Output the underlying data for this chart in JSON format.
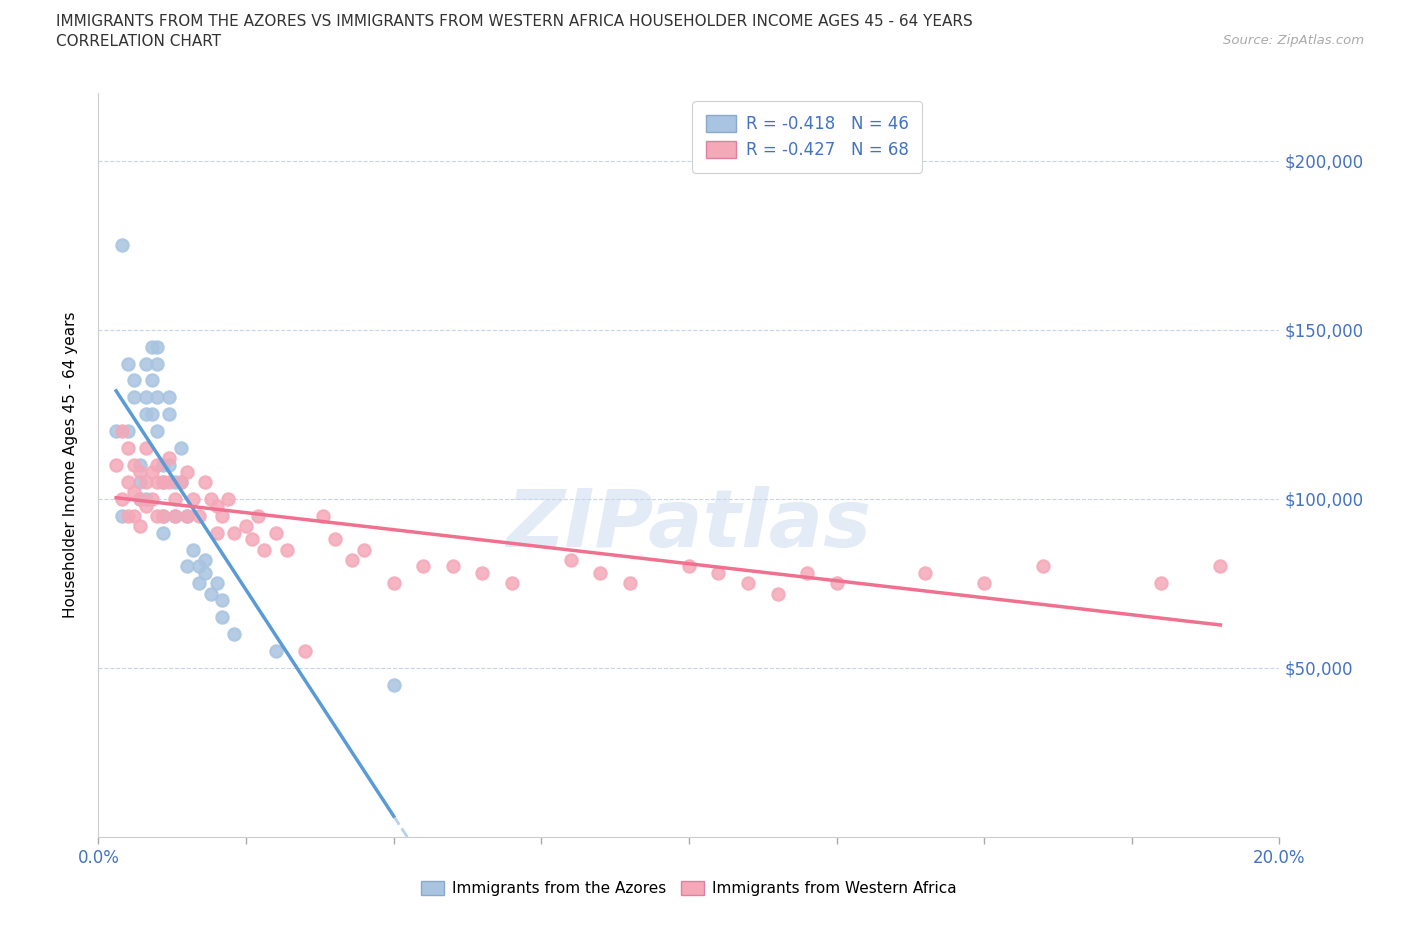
{
  "title_line1": "IMMIGRANTS FROM THE AZORES VS IMMIGRANTS FROM WESTERN AFRICA HOUSEHOLDER INCOME AGES 45 - 64 YEARS",
  "title_line2": "CORRELATION CHART",
  "source_text": "Source: ZipAtlas.com",
  "ylabel_label": "Householder Income Ages 45 - 64 years",
  "xlim": [
    0.0,
    0.2
  ],
  "ylim": [
    0,
    220000
  ],
  "x_ticks": [
    0.0,
    0.025,
    0.05,
    0.075,
    0.1,
    0.125,
    0.15,
    0.175,
    0.2
  ],
  "y_ticks": [
    0,
    50000,
    100000,
    150000,
    200000
  ],
  "azores_color": "#a8c4e0",
  "western_africa_color": "#f4a8b8",
  "azores_line_color": "#5b9bd5",
  "western_africa_line_color": "#f07090",
  "legend_r_azores": "-0.418",
  "legend_n_azores": "46",
  "legend_r_africa": "-0.427",
  "legend_n_africa": "68",
  "background_color": "#ffffff",
  "azores_x": [
    0.003,
    0.004,
    0.004,
    0.005,
    0.005,
    0.006,
    0.006,
    0.007,
    0.007,
    0.007,
    0.008,
    0.008,
    0.008,
    0.008,
    0.009,
    0.009,
    0.009,
    0.01,
    0.01,
    0.01,
    0.01,
    0.011,
    0.011,
    0.011,
    0.011,
    0.012,
    0.012,
    0.012,
    0.013,
    0.013,
    0.014,
    0.014,
    0.015,
    0.015,
    0.016,
    0.017,
    0.017,
    0.018,
    0.018,
    0.019,
    0.02,
    0.021,
    0.021,
    0.023,
    0.03,
    0.05
  ],
  "azores_y": [
    120000,
    175000,
    95000,
    140000,
    120000,
    130000,
    135000,
    110000,
    105000,
    100000,
    140000,
    130000,
    125000,
    100000,
    145000,
    135000,
    125000,
    145000,
    140000,
    130000,
    120000,
    110000,
    105000,
    95000,
    90000,
    130000,
    125000,
    110000,
    105000,
    95000,
    115000,
    105000,
    95000,
    80000,
    85000,
    80000,
    75000,
    82000,
    78000,
    72000,
    75000,
    70000,
    65000,
    60000,
    55000,
    45000
  ],
  "africa_x": [
    0.003,
    0.004,
    0.004,
    0.005,
    0.005,
    0.005,
    0.006,
    0.006,
    0.006,
    0.007,
    0.007,
    0.007,
    0.008,
    0.008,
    0.008,
    0.009,
    0.009,
    0.01,
    0.01,
    0.01,
    0.011,
    0.011,
    0.012,
    0.012,
    0.013,
    0.013,
    0.014,
    0.015,
    0.015,
    0.016,
    0.017,
    0.018,
    0.019,
    0.02,
    0.02,
    0.021,
    0.022,
    0.023,
    0.025,
    0.026,
    0.027,
    0.028,
    0.03,
    0.032,
    0.035,
    0.038,
    0.04,
    0.043,
    0.045,
    0.05,
    0.055,
    0.06,
    0.065,
    0.07,
    0.08,
    0.085,
    0.09,
    0.1,
    0.105,
    0.11,
    0.115,
    0.12,
    0.125,
    0.14,
    0.15,
    0.16,
    0.18,
    0.19
  ],
  "africa_y": [
    110000,
    120000,
    100000,
    115000,
    105000,
    95000,
    110000,
    102000,
    95000,
    108000,
    100000,
    92000,
    115000,
    105000,
    98000,
    108000,
    100000,
    110000,
    105000,
    95000,
    105000,
    95000,
    112000,
    105000,
    100000,
    95000,
    105000,
    108000,
    95000,
    100000,
    95000,
    105000,
    100000,
    98000,
    90000,
    95000,
    100000,
    90000,
    92000,
    88000,
    95000,
    85000,
    90000,
    85000,
    55000,
    95000,
    88000,
    82000,
    85000,
    75000,
    80000,
    80000,
    78000,
    75000,
    82000,
    78000,
    75000,
    80000,
    78000,
    75000,
    72000,
    78000,
    75000,
    78000,
    75000,
    80000,
    75000,
    80000
  ]
}
